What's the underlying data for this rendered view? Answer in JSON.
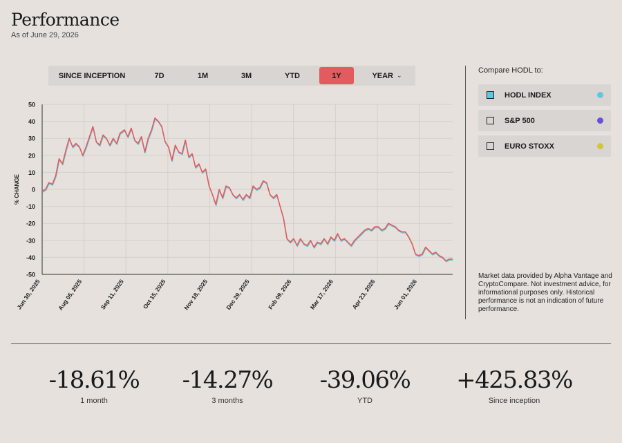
{
  "header": {
    "title": "Performance",
    "as_of": "As of June 29, 2026"
  },
  "tabs": [
    {
      "label": "SINCE INCEPTION",
      "active": false
    },
    {
      "label": "7D",
      "active": false
    },
    {
      "label": "1M",
      "active": false
    },
    {
      "label": "3M",
      "active": false
    },
    {
      "label": "YTD",
      "active": false
    },
    {
      "label": "1Y",
      "active": true
    },
    {
      "label": "YEAR",
      "active": false,
      "icon": "chevron-down-icon"
    }
  ],
  "compare": {
    "title": "Compare HODL to:",
    "items": [
      {
        "label": "HODL INDEX",
        "checked": true,
        "color": "#5fc7df"
      },
      {
        "label": "S&P 500",
        "checked": false,
        "color": "#6a4fdc"
      },
      {
        "label": "EURO STOXX",
        "checked": false,
        "color": "#d4c43a"
      }
    ]
  },
  "disclaimer": "Market data provided by Alpha Vantage and CryptoCompare. Not investment advice, for informational purposes only. Historical performance is not an indication of future performance.",
  "stats": [
    {
      "value": "-18.61%",
      "label": "1 month"
    },
    {
      "value": "-14.27%",
      "label": "3 months"
    },
    {
      "value": "-39.06%",
      "label": "YTD"
    },
    {
      "value": "+425.83%",
      "label": "Since inception"
    }
  ],
  "chart_data": {
    "type": "line",
    "title": "",
    "xlabel": "",
    "ylabel": "% CHANGE",
    "ylim": [
      -50,
      50
    ],
    "y_ticks": [
      50,
      40,
      30,
      20,
      10,
      0,
      -10,
      -20,
      -30,
      -40,
      -50
    ],
    "x_ticks": [
      "Jun 30, 2025",
      "Aug 05, 2025",
      "Sep 11, 2025",
      "Oct 15, 2025",
      "Nov 18, 2025",
      "Dec 29, 2025",
      "Feb 09, 2026",
      "Mar 17, 2026",
      "Apr 23, 2026",
      "Jun 01, 2026"
    ],
    "grid": true,
    "series": [
      {
        "colors": [
          "#e25b5e",
          "#5fc7df"
        ],
        "points": [
          [
            "2025-06-30",
            -1
          ],
          [
            "2025-07-03",
            0
          ],
          [
            "2025-07-06",
            4
          ],
          [
            "2025-07-09",
            3
          ],
          [
            "2025-07-12",
            8
          ],
          [
            "2025-07-15",
            18
          ],
          [
            "2025-07-18",
            15
          ],
          [
            "2025-07-21",
            23
          ],
          [
            "2025-07-24",
            30
          ],
          [
            "2025-07-27",
            25
          ],
          [
            "2025-07-30",
            27
          ],
          [
            "2025-08-02",
            25
          ],
          [
            "2025-08-05",
            20
          ],
          [
            "2025-08-08",
            25
          ],
          [
            "2025-08-11",
            31
          ],
          [
            "2025-08-14",
            37
          ],
          [
            "2025-08-17",
            28
          ],
          [
            "2025-08-20",
            26
          ],
          [
            "2025-08-23",
            32
          ],
          [
            "2025-08-26",
            30
          ],
          [
            "2025-08-29",
            26
          ],
          [
            "2025-09-01",
            30
          ],
          [
            "2025-09-04",
            27
          ],
          [
            "2025-09-07",
            33
          ],
          [
            "2025-09-11",
            35
          ],
          [
            "2025-09-14",
            31
          ],
          [
            "2025-09-17",
            36
          ],
          [
            "2025-09-20",
            29
          ],
          [
            "2025-09-23",
            27
          ],
          [
            "2025-09-26",
            31
          ],
          [
            "2025-09-29",
            22
          ],
          [
            "2025-10-02",
            30
          ],
          [
            "2025-10-05",
            35
          ],
          [
            "2025-10-08",
            42
          ],
          [
            "2025-10-11",
            40
          ],
          [
            "2025-10-14",
            37
          ],
          [
            "2025-10-17",
            28
          ],
          [
            "2025-10-20",
            25
          ],
          [
            "2025-10-23",
            17
          ],
          [
            "2025-10-26",
            26
          ],
          [
            "2025-10-29",
            22
          ],
          [
            "2025-11-01",
            21
          ],
          [
            "2025-11-04",
            29
          ],
          [
            "2025-11-07",
            19
          ],
          [
            "2025-11-10",
            21
          ],
          [
            "2025-11-13",
            13
          ],
          [
            "2025-11-16",
            15
          ],
          [
            "2025-11-19",
            10
          ],
          [
            "2025-11-22",
            12
          ],
          [
            "2025-11-25",
            2
          ],
          [
            "2025-11-28",
            -3
          ],
          [
            "2025-12-01",
            -9
          ],
          [
            "2025-12-04",
            0
          ],
          [
            "2025-12-07",
            -5
          ],
          [
            "2025-12-10",
            2
          ],
          [
            "2025-12-13",
            1
          ],
          [
            "2025-12-16",
            -3
          ],
          [
            "2025-12-19",
            -5
          ],
          [
            "2025-12-22",
            -3
          ],
          [
            "2025-12-25",
            -6
          ],
          [
            "2025-12-28",
            -3
          ],
          [
            "2025-12-31",
            -5
          ],
          [
            "2026-01-03",
            2
          ],
          [
            "2026-01-06",
            0
          ],
          [
            "2026-01-09",
            1
          ],
          [
            "2026-01-12",
            5
          ],
          [
            "2026-01-15",
            4
          ],
          [
            "2026-01-18",
            -3
          ],
          [
            "2026-01-21",
            -5
          ],
          [
            "2026-01-24",
            -3
          ],
          [
            "2026-01-27",
            -10
          ],
          [
            "2026-01-30",
            -17
          ],
          [
            "2026-02-02",
            -29
          ],
          [
            "2026-02-05",
            -31
          ],
          [
            "2026-02-08",
            -29
          ],
          [
            "2026-02-11",
            -33
          ],
          [
            "2026-02-14",
            -29
          ],
          [
            "2026-02-17",
            -32
          ],
          [
            "2026-02-20",
            -33
          ],
          [
            "2026-02-23",
            -30
          ],
          [
            "2026-02-26",
            -34
          ],
          [
            "2026-03-01",
            -31
          ],
          [
            "2026-03-04",
            -32
          ],
          [
            "2026-03-07",
            -29
          ],
          [
            "2026-03-10",
            -32
          ],
          [
            "2026-03-13",
            -28
          ],
          [
            "2026-03-16",
            -30
          ],
          [
            "2026-03-19",
            -26
          ],
          [
            "2026-03-22",
            -30
          ],
          [
            "2026-03-25",
            -29
          ],
          [
            "2026-03-28",
            -31
          ],
          [
            "2026-03-31",
            -33
          ],
          [
            "2026-04-03",
            -30
          ],
          [
            "2026-04-06",
            -28
          ],
          [
            "2026-04-09",
            -26
          ],
          [
            "2026-04-12",
            -24
          ],
          [
            "2026-04-15",
            -23
          ],
          [
            "2026-04-18",
            -24
          ],
          [
            "2026-04-21",
            -22
          ],
          [
            "2026-04-24",
            -22
          ],
          [
            "2026-04-27",
            -24
          ],
          [
            "2026-04-30",
            -23
          ],
          [
            "2026-05-03",
            -20
          ],
          [
            "2026-05-06",
            -21
          ],
          [
            "2026-05-09",
            -22
          ],
          [
            "2026-05-12",
            -24
          ],
          [
            "2026-05-15",
            -25
          ],
          [
            "2026-05-18",
            -25
          ],
          [
            "2026-05-21",
            -28
          ],
          [
            "2026-05-24",
            -32
          ],
          [
            "2026-05-27",
            -38
          ],
          [
            "2026-05-30",
            -39
          ],
          [
            "2026-06-02",
            -38
          ],
          [
            "2026-06-05",
            -34
          ],
          [
            "2026-06-08",
            -36
          ],
          [
            "2026-06-11",
            -38
          ],
          [
            "2026-06-14",
            -37
          ],
          [
            "2026-06-17",
            -39
          ],
          [
            "2026-06-20",
            -40
          ],
          [
            "2026-06-23",
            -42
          ],
          [
            "2026-06-26",
            -41
          ],
          [
            "2026-06-29",
            -41
          ]
        ]
      }
    ]
  }
}
